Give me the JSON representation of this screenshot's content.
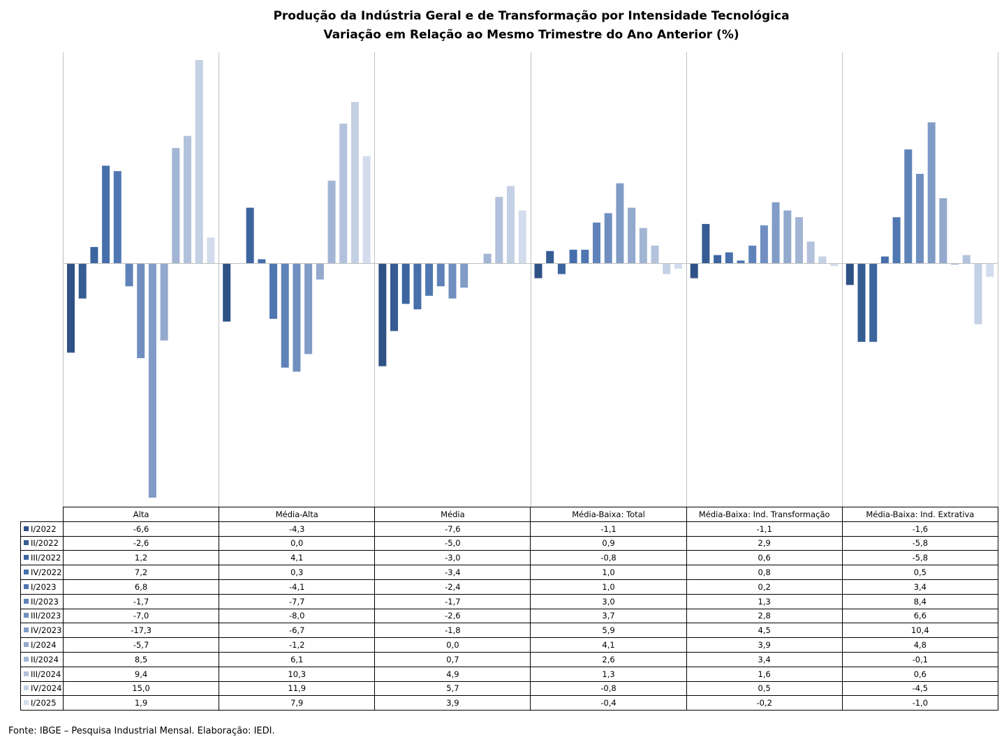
{
  "chart_data": {
    "type": "bar",
    "title": "Produção da Indústria Geral e de Transformação por Intensidade Tecnológica",
    "subtitle": "Variação em Relação ao Mesmo Trimestre do Ano Anterior (%)",
    "categories": [
      "Alta",
      "Média-Alta",
      "Média",
      "Média-Baixa: Total",
      "Média-Baixa: Ind. Transformação",
      "Média-Baixa: Ind. Extrativa"
    ],
    "ylim": [
      -17.3,
      15.0
    ],
    "grid": false,
    "legend": "data-table-below",
    "series": [
      {
        "name": "I/2022",
        "color": "#2f5286",
        "values": [
          "-6,6",
          "-4,3",
          "-7,6",
          "-1,1",
          "-1,1",
          "-1,6"
        ]
      },
      {
        "name": "II/2022",
        "color": "#355c93",
        "values": [
          "-2,6",
          "0,0",
          "-5,0",
          "0,9",
          "2,9",
          "-5,8"
        ]
      },
      {
        "name": "III/2022",
        "color": "#3c65a0",
        "values": [
          "1,2",
          "4,1",
          "-3,0",
          "-0,8",
          "0,6",
          "-5,8"
        ]
      },
      {
        "name": "IV/2022",
        "color": "#466fab",
        "values": [
          "7,2",
          "0,3",
          "-3,4",
          "1,0",
          "0,8",
          "0,5"
        ]
      },
      {
        "name": "I/2023",
        "color": "#4f77b1",
        "values": [
          "6,8",
          "-4,1",
          "-2,4",
          "1,0",
          "0,2",
          "3,4"
        ]
      },
      {
        "name": "II/2023",
        "color": "#5f83b9",
        "values": [
          "-1,7",
          "-7,7",
          "-1,7",
          "3,0",
          "1,3",
          "8,4"
        ]
      },
      {
        "name": "III/2023",
        "color": "#708fc0",
        "values": [
          "-7,0",
          "-8,0",
          "-2,6",
          "3,7",
          "2,8",
          "6,6"
        ]
      },
      {
        "name": "IV/2023",
        "color": "#819cc6",
        "values": [
          "-17,3",
          "-6,7",
          "-1,8",
          "5,9",
          "4,5",
          "10,4"
        ]
      },
      {
        "name": "I/2024",
        "color": "#93a9cd",
        "values": [
          "-5,7",
          "-1,2",
          "0,0",
          "4,1",
          "3,9",
          "4,8"
        ]
      },
      {
        "name": "II/2024",
        "color": "#a3b5d4",
        "values": [
          "8,5",
          "6,1",
          "0,7",
          "2,6",
          "3,4",
          "-0,1"
        ]
      },
      {
        "name": "III/2024",
        "color": "#b3c2dc",
        "values": [
          "9,4",
          "10,3",
          "4,9",
          "1,3",
          "1,6",
          "0,6"
        ]
      },
      {
        "name": "IV/2024",
        "color": "#c4d0e4",
        "values": [
          "15,0",
          "11,9",
          "5,7",
          "-0,8",
          "0,5",
          "-4,5"
        ]
      },
      {
        "name": "I/2025",
        "color": "#d3dcec",
        "values": [
          "1,9",
          "7,9",
          "3,9",
          "-0,4",
          "-0,2",
          "-1,0"
        ]
      }
    ]
  },
  "source": "Fonte: IBGE – Pesquisa Industrial Mensal. Elaboração: IEDI."
}
